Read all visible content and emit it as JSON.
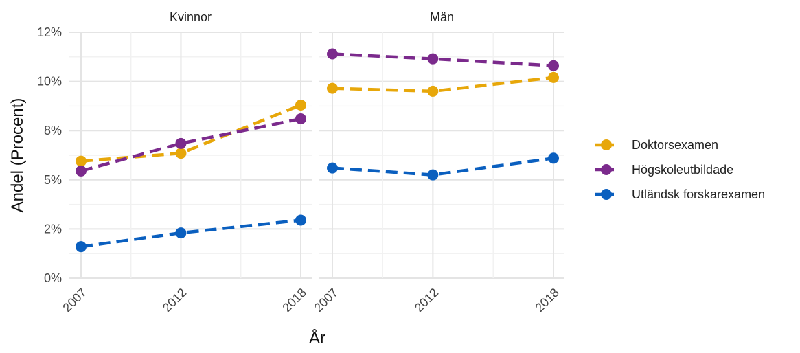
{
  "chart_data": {
    "type": "line",
    "facets": [
      {
        "title": "Kvinnor",
        "x": [
          2007,
          2012,
          2018
        ],
        "series": [
          {
            "name": "Doktorsexamen",
            "values": [
              5.95,
              6.35,
              8.8
            ]
          },
          {
            "name": "Högskoleutbildade",
            "values": [
              5.45,
              6.85,
              8.1
            ]
          },
          {
            "name": "Utländsk forskarexamen",
            "values": [
              1.6,
              2.3,
              2.95
            ]
          }
        ]
      },
      {
        "title": "Män",
        "x": [
          2007,
          2012,
          2018
        ],
        "series": [
          {
            "name": "Doktorsexamen",
            "values": [
              9.65,
              9.5,
              10.2
            ]
          },
          {
            "name": "Högskoleutbildade",
            "values": [
              11.4,
              11.15,
              10.8
            ]
          },
          {
            "name": "Utländsk forskarexamen",
            "values": [
              5.6,
              5.25,
              6.1
            ]
          }
        ]
      }
    ],
    "colors": {
      "Doktorsexamen": "#E7A70A",
      "Högskoleutbildade": "#7B2A8C",
      "Utländsk forskarexamen": "#0A5FBF"
    },
    "xlabel": "År",
    "ylabel": "Andel (Procent)",
    "ylim": [
      0,
      12
    ],
    "xlim": [
      2007,
      2018
    ],
    "yticks": [
      {
        "value": 0,
        "label": "0%"
      },
      {
        "value": 2.5,
        "label": "2%"
      },
      {
        "value": 5,
        "label": "5%"
      },
      {
        "value": 7.5,
        "label": "8%"
      },
      {
        "value": 10,
        "label": "10%"
      },
      {
        "value": 12.5,
        "label": "12%"
      }
    ],
    "xticks": [
      2007,
      2012,
      2018
    ],
    "legend": {
      "position": "right",
      "entries": [
        "Doktorsexamen",
        "Högskoleutbildade",
        "Utländsk forskarexamen"
      ]
    },
    "line_style": "dashed",
    "grid": true
  }
}
